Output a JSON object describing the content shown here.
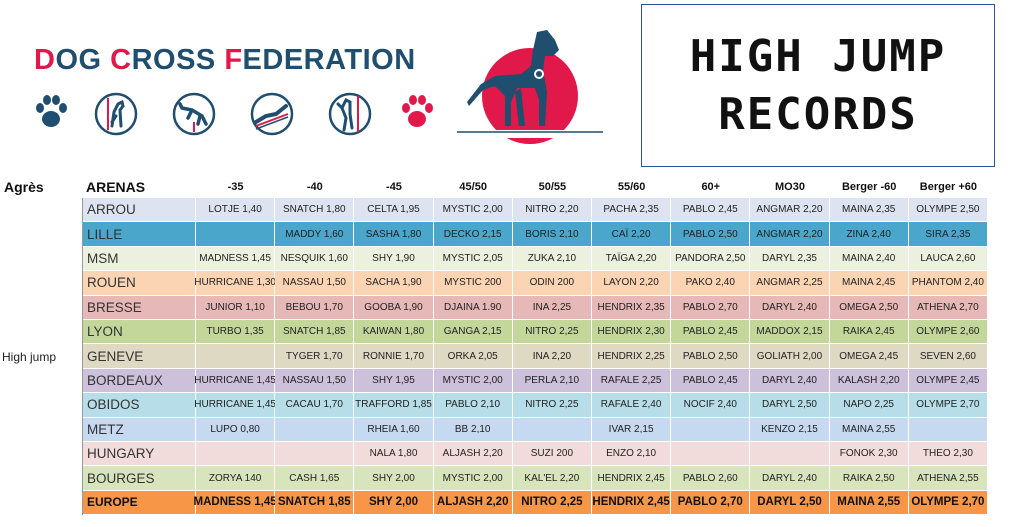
{
  "brand": {
    "title_parts": [
      {
        "text": "D",
        "red": true
      },
      {
        "text": "OG ",
        "red": false
      },
      {
        "text": "C",
        "red": true
      },
      {
        "text": "ROSS ",
        "red": false
      },
      {
        "text": "F",
        "red": true
      },
      {
        "text": "EDERATION",
        "red": false
      }
    ]
  },
  "record_box": {
    "line1": "HIGH JUMP",
    "line2": "RECORDS"
  },
  "table": {
    "header_apparatus": "Agrès",
    "header_arenas": "ARENAS",
    "columns": [
      "-35",
      "-40",
      "-45",
      "45/50",
      "50/55",
      "55/60",
      "60+",
      "MO30",
      "Berger -60",
      "Berger +60"
    ],
    "apparatus_label": "High jump",
    "rows": [
      {
        "arena": "ARROU",
        "color": "#dde3f0",
        "cells": [
          "LOTJE 1,40",
          "SNATCH 1,80",
          "CELTA 1,95",
          "MYSTIC 2,00",
          "NITRO 2,20",
          "PACHA 2,35",
          "PABLO 2,45",
          "ANGMAR 2,20",
          "MAINA 2,35",
          "OLYMPE 2,50"
        ]
      },
      {
        "arena": "LILLE",
        "color": "#4aa6cb",
        "cells": [
          "",
          "MADDY 1,60",
          "SASHA 1,80",
          "DECKO 2,15",
          "BORIS 2,10",
          "CAÏ 2,20",
          "PABLO 2,50",
          "ANGMAR 2,20",
          "ZINA 2,40",
          "SIRA 2,35"
        ]
      },
      {
        "arena": "MSM",
        "color": "#ebf1de",
        "cells": [
          "MADNESS 1,45",
          "NESQUIK 1,60",
          "SHY 1,90",
          "MYSTIC 2,05",
          "ZUKA 2,10",
          "TAÏGA 2,20",
          "PANDORA 2,50",
          "DARYL 2,35",
          "MAINA 2,40",
          "LAUCA 2,60"
        ]
      },
      {
        "arena": "ROUEN",
        "color": "#fbd4b3",
        "cells": [
          "HURRICANE 1,30",
          "NASSAU 1,50",
          "SACHA 1,90",
          "MYSTIC 200",
          "ODIN 200",
          "LAYON 2,20",
          "PAKO 2,40",
          "ANGMAR 2,25",
          "MAINA 2,45",
          "PHANTOM 2,40"
        ]
      },
      {
        "arena": "BRESSE",
        "color": "#e6b8b7",
        "cells": [
          "JUNIOR 1,10",
          "BEBOU 1,70",
          "GOOBA 1,90",
          "DJAINA 1.90",
          "INA 2,25",
          "HENDRIX 2,35",
          "PABLO 2,70",
          "DARYL 2,40",
          "OMEGA 2,50",
          "ATHENA 2,70"
        ]
      },
      {
        "arena": "LYON",
        "color": "#c4d79b",
        "cells": [
          "TURBO 1,35",
          "SNATCH 1,85",
          "KAIWAN 1,80",
          "GANGA 2,15",
          "NITRO 2,25",
          "HENDRIX 2,30",
          "PABLO 2,45",
          "MADDOX 2,15",
          "RAIKA 2,45",
          "OLYMPE 2,60"
        ]
      },
      {
        "arena": "GENEVE",
        "color": "#ddd9c3",
        "cells": [
          "",
          "TYGER 1,70",
          "RONNIE 1,70",
          "ORKA 2,05",
          "INA 2,20",
          "HENDRIX 2,25",
          "PABLO 2,50",
          "GOLIATH 2,00",
          "OMEGA 2,45",
          "SEVEN 2,60"
        ]
      },
      {
        "arena": "BORDEAUX",
        "color": "#ccc0da",
        "cells": [
          "HURRICANE 1,45",
          "NASSAU 1,50",
          "SHY 1,95",
          "MYSTIC 2,00",
          "PERLA 2,10",
          "RAFALE 2,25",
          "PABLO 2,45",
          "DARYL 2,40",
          "KALASH 2,20",
          "OLYMPE 2,45"
        ]
      },
      {
        "arena": "OBIDOS",
        "color": "#b7dee8",
        "cells": [
          "HURRICANE 1,45",
          "CACAU 1,70",
          "TRAFFORD 1,85",
          "PABLO 2,10",
          "NITRO 2,25",
          "RAFALE 2,40",
          "NOCIF 2,40",
          "DARYL 2,50",
          "NAPO 2,25",
          "OLYMPE 2,70"
        ]
      },
      {
        "arena": "METZ",
        "color": "#c5d9f1",
        "cells": [
          "LUPO 0,80",
          "",
          "RHEIA 1,60",
          "BB 2,10",
          "",
          "IVAR 2,15",
          "",
          "KENZO 2,15",
          "MAINA 2,55",
          ""
        ]
      },
      {
        "arena": "HUNGARY",
        "color": "#f2dcdb",
        "cells": [
          "",
          "",
          "NALA 1,80",
          "ALJASH 2,20",
          "SUZI 200",
          "ENZO 2,10",
          "",
          "",
          "FONOK 2,30",
          "THEO 2,30"
        ]
      },
      {
        "arena": "BOURGES",
        "color": "#d8e4bc",
        "cells": [
          "ZORYA 140",
          "CASH 1,65",
          "SHY 2,00",
          "MYSTIC 2,00",
          "KAL'EL 2,20",
          "HENDRIX 2,45",
          "PABLO 2,60",
          "DARYL 2,40",
          "RAIKA 2,50",
          "ATHENA 2,55"
        ]
      },
      {
        "arena": "EUROPE",
        "color": "#f79646",
        "europe": true,
        "cells": [
          "MADNESS 1,45",
          "SNATCH 1,85",
          "SHY 2,00",
          "ALJASH 2,20",
          "NITRO 2,25",
          "HENDRIX 2,45",
          "PABLO 2,70",
          "DARYL 2,50",
          "MAINA 2,55",
          "OLYMPE 2,70"
        ]
      }
    ]
  },
  "colors": {
    "brand_blue": "#1f4e6e",
    "brand_red": "#e0194a",
    "sun_red": "#e0194a",
    "dog": "#1f4e6e",
    "europe": "#f79646"
  },
  "icons": [
    "paw-icon",
    "dog-jump-icon",
    "dog-hurdle-icon",
    "dog-tunnel-icon",
    "dog-high-jump-icon",
    "paw-icon-red",
    "dog-logo-icon"
  ]
}
